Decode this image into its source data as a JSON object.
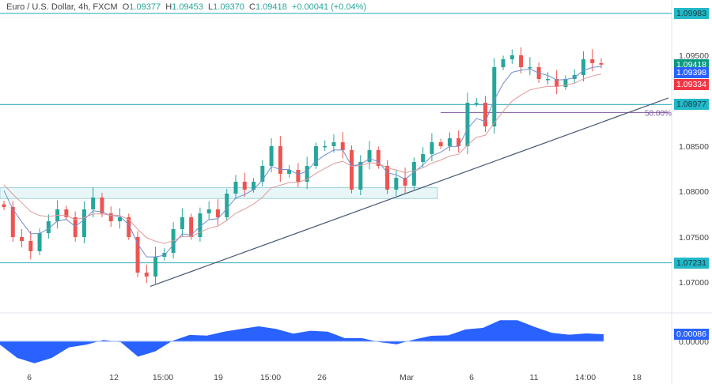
{
  "header": {
    "symbol": "Euro / U.S. Dollar, 4h, FXCM",
    "open_label": "O",
    "open": "1.09377",
    "high_label": "H",
    "high": "1.09453",
    "low_label": "L",
    "low": "1.09370",
    "close_label": "C",
    "close": "1.09418",
    "change": "+0.00041 (+0.04%)"
  },
  "colors": {
    "up": "#26a69a",
    "down": "#ef5350",
    "fast_ma": "#6f8fcf",
    "slow_ma": "#e09a9a",
    "level": "#4db6c4",
    "trend": "#4a5a7a",
    "fib": "#7e57a2",
    "osc": "#2962ff"
  },
  "chart_data": {
    "type": "candlestick",
    "ylim": [
      1.0672,
      1.1004
    ],
    "y_ticks": [
      "1.09500",
      "1.08500",
      "1.08000",
      "1.07500",
      "1.07000"
    ],
    "x_ticks": [
      "6",
      "12",
      "15:00",
      "19",
      "15:00",
      "26",
      "Mar",
      "6",
      "11",
      "14:00",
      "18"
    ],
    "closes": [
      1.07846,
      1.07515,
      1.07471,
      1.07358,
      1.07558,
      1.07689,
      1.0782,
      1.07733,
      1.07515,
      1.0782,
      1.07951,
      1.07776,
      1.07689,
      1.07733,
      1.07515,
      1.07122,
      1.07079,
      1.07297,
      1.0734,
      1.07602,
      1.07733,
      1.07515,
      1.07776,
      1.0782,
      1.07733,
      1.07994,
      1.08125,
      1.08038,
      1.08125,
      1.083,
      1.08518,
      1.08213,
      1.08256,
      1.08125,
      1.083,
      1.08518,
      1.08518,
      1.08561,
      1.08474,
      1.08038,
      1.08343,
      1.08474,
      1.083,
      1.08038,
      1.08169,
      1.08082,
      1.08343,
      1.08431,
      1.08561,
      1.08518,
      1.08605,
      1.08518,
      1.08997,
      1.08997,
      1.08736,
      1.0939,
      1.09477,
      1.09521,
      1.0939,
      1.0939,
      1.09259,
      1.09259,
      1.09172,
      1.09259,
      1.09303,
      1.09477,
      1.09434,
      1.09418
    ],
    "levels": [
      {
        "price": 1.09983,
        "label": "1.09983"
      },
      {
        "price": 1.08977,
        "label": "1.08977"
      },
      {
        "price": 1.07231,
        "label": "1.07231"
      }
    ],
    "zone": [
      1.0794,
      1.0806
    ],
    "fib_level": {
      "price": 1.0889,
      "label": "50.00%"
    },
    "trendline": [
      1.0697,
      1.0905
    ],
    "price_tags": [
      {
        "label": "1.09418",
        "color": "#089981",
        "price": 1.09418
      },
      {
        "label": "1.09398",
        "color": "#2962ff",
        "price": 1.09328
      },
      {
        "label": "1.09334",
        "color": "#f23645",
        "price": 1.092
      }
    ],
    "oscillator": {
      "values": [
        -0.00041,
        -0.00201,
        -0.00265,
        -0.00201,
        -0.00073,
        -0.00041,
        0.00016,
        -0.0001,
        -0.00185,
        -0.00121,
        6e-05,
        0.00077,
        0.0007,
        0.00118,
        0.0015,
        0.00182,
        0.0015,
        0.00093,
        0.00128,
        0.00118,
        0.00038,
        0.00038,
        -0.0001,
        -0.00035,
        0.00022,
        0.00067,
        0.00073,
        0.00144,
        0.00163,
        0.00255,
        0.00255,
        0.00175,
        0.00102,
        0.0008,
        0.00096,
        0.00086
      ],
      "last_label": "0.00086",
      "zero_label": "0.00000"
    }
  }
}
